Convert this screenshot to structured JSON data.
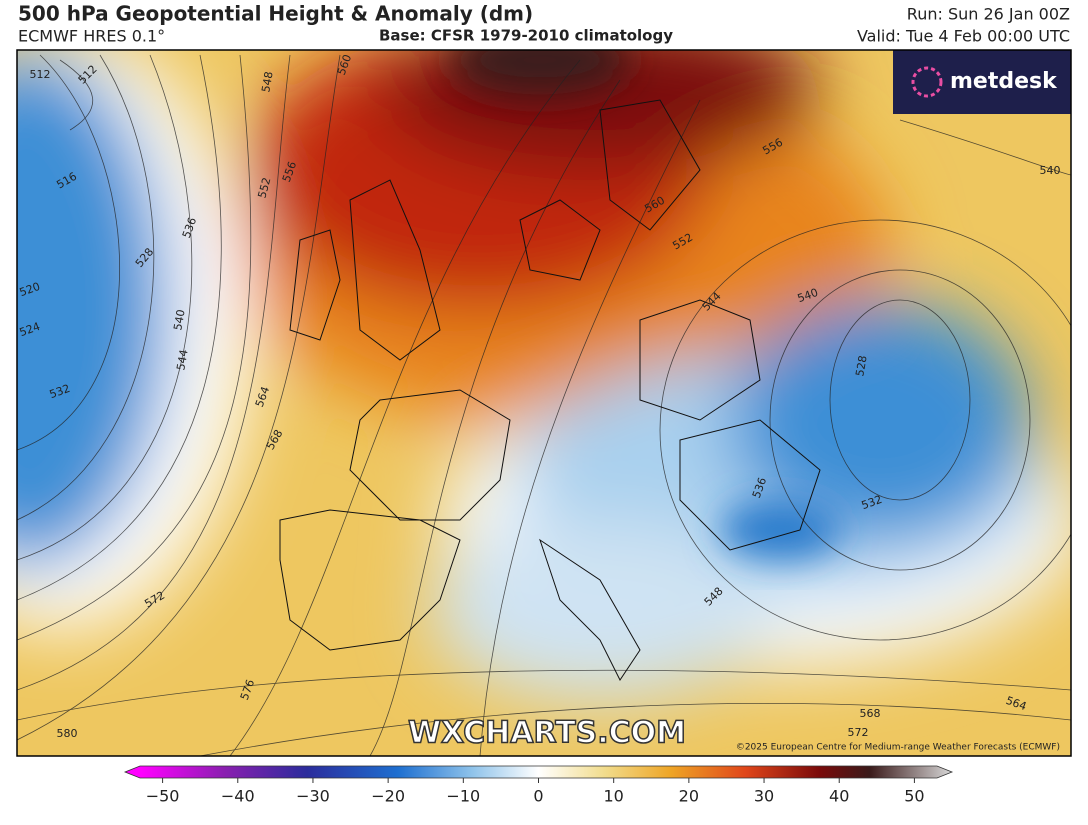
{
  "header": {
    "title": "500 hPa Geopotential Height & Anomaly (dm)",
    "model": "ECMWF HRES 0.1°",
    "base": "Base: CFSR 1979-2010 climatology",
    "run": "Run: Sun 26 Jan 00Z",
    "valid": "Valid: Tue 4 Feb 00:00 UTC"
  },
  "logo": "metdesk",
  "watermark": "WXCHARTS.COM",
  "copyright": "©2025 European Centre for Medium-range Weather Forecasts (ECMWF)",
  "contour_labels": [
    512,
    512,
    516,
    520,
    524,
    528,
    532,
    536,
    540,
    544,
    548,
    552,
    556,
    560,
    564,
    568,
    572,
    576,
    580,
    540,
    544,
    552,
    556,
    560,
    528,
    532,
    536,
    540,
    548,
    564,
    568,
    572
  ],
  "colorbar": {
    "lim": [
      -55,
      55
    ],
    "ticks": [
      {
        "value": -50,
        "label": "−50"
      },
      {
        "value": -40,
        "label": "−40"
      },
      {
        "value": -30,
        "label": "−30"
      },
      {
        "value": -20,
        "label": "−20"
      },
      {
        "value": -10,
        "label": "−10"
      },
      0,
      10,
      20,
      30,
      40,
      50
    ]
  }
}
